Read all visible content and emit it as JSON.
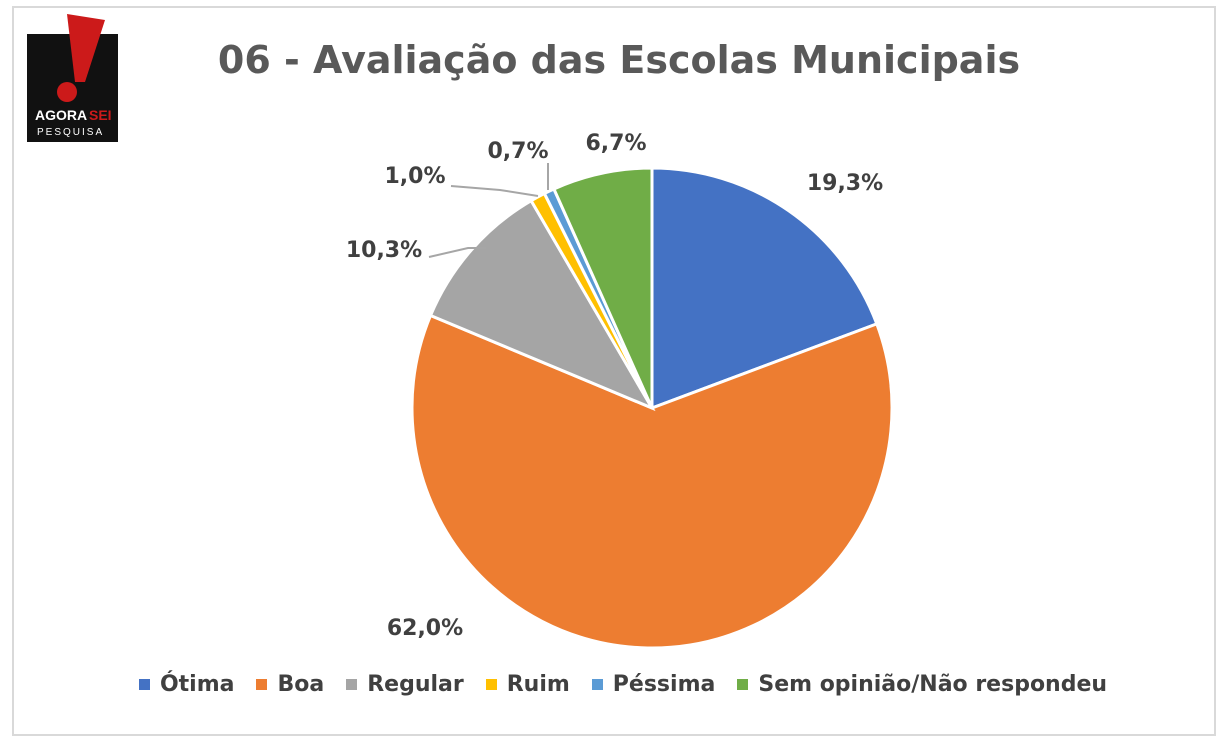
{
  "logo": {
    "brand_text_1": "AGORA",
    "brand_text_2": "SEI",
    "brand_sub": "PESQUISA",
    "colors": {
      "background": "#111111",
      "exclamation": "#cc1a1a"
    }
  },
  "chart_data": {
    "type": "pie",
    "title": "06 - Avaliação das Escolas Municipais",
    "categories": [
      "Ótima",
      "Boa",
      "Regular",
      "Ruim",
      "Péssima",
      "Sem opinião/Não respondeu"
    ],
    "values": [
      19.3,
      62.0,
      10.3,
      1.0,
      0.7,
      6.7
    ],
    "value_labels": [
      "19,3%",
      "62,0%",
      "10,3%",
      "1,0%",
      "0,7%",
      "6,7%"
    ],
    "colors": [
      "#4472c4",
      "#ed7d31",
      "#a5a5a5",
      "#ffc000",
      "#5b9bd5",
      "#70ad47"
    ],
    "start_angle": "12 o'clock, clockwise",
    "legend_position": "bottom"
  }
}
